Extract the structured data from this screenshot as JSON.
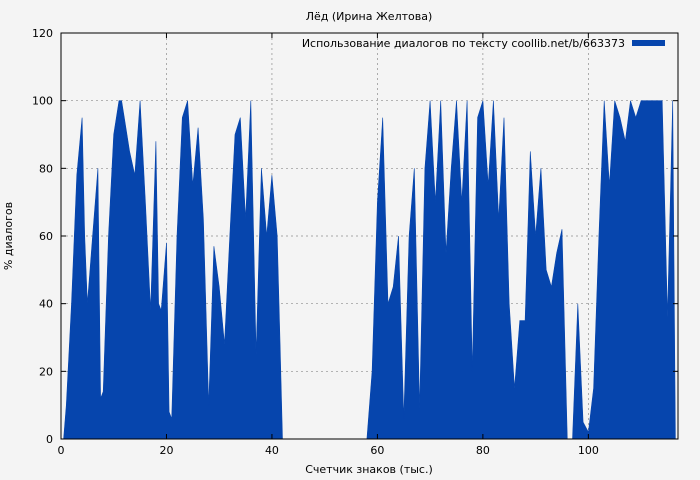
{
  "chart_data": {
    "type": "area",
    "title": "Лёд (Ирина Желтова)",
    "xlabel": "Счетчик знаков (тыс.)",
    "ylabel": "% диалогов",
    "xlim": [
      0,
      117
    ],
    "ylim": [
      0,
      120
    ],
    "x_ticks": [
      0,
      20,
      40,
      60,
      80,
      100
    ],
    "y_ticks": [
      0,
      20,
      40,
      60,
      80,
      100,
      120
    ],
    "grid": true,
    "legend_position": "top-right",
    "series": [
      {
        "name": "Использование диалогов по тексту coollib.net/b/663373",
        "color": "#0645ad",
        "points": [
          [
            0.5,
            0
          ],
          [
            1,
            10
          ],
          [
            2,
            40
          ],
          [
            3,
            78
          ],
          [
            4,
            95
          ],
          [
            4.5,
            60
          ],
          [
            5,
            40
          ],
          [
            6,
            60
          ],
          [
            7,
            80
          ],
          [
            7.5,
            12
          ],
          [
            8,
            14
          ],
          [
            9,
            60
          ],
          [
            10,
            90
          ],
          [
            11,
            100
          ],
          [
            11.5,
            100
          ],
          [
            12,
            95
          ],
          [
            13,
            85
          ],
          [
            14,
            78
          ],
          [
            15,
            100
          ],
          [
            16,
            70
          ],
          [
            17,
            38
          ],
          [
            18,
            88
          ],
          [
            18.5,
            40
          ],
          [
            19,
            38
          ],
          [
            20,
            58
          ],
          [
            20.5,
            8
          ],
          [
            21,
            6
          ],
          [
            22,
            60
          ],
          [
            23,
            95
          ],
          [
            24,
            100
          ],
          [
            25,
            75
          ],
          [
            26,
            92
          ],
          [
            27,
            65
          ],
          [
            28,
            10
          ],
          [
            29,
            57
          ],
          [
            30,
            45
          ],
          [
            31,
            28
          ],
          [
            32,
            60
          ],
          [
            33,
            90
          ],
          [
            34,
            95
          ],
          [
            35,
            65
          ],
          [
            36,
            100
          ],
          [
            37,
            25
          ],
          [
            38,
            80
          ],
          [
            39,
            60
          ],
          [
            40,
            78
          ],
          [
            41,
            60
          ],
          [
            41.5,
            30
          ],
          [
            42,
            0
          ],
          [
            58,
            0
          ],
          [
            59,
            20
          ],
          [
            60,
            70
          ],
          [
            61,
            95
          ],
          [
            62,
            40
          ],
          [
            63,
            45
          ],
          [
            64,
            60
          ],
          [
            65,
            6
          ],
          [
            66,
            60
          ],
          [
            67,
            80
          ],
          [
            68,
            9
          ],
          [
            69,
            80
          ],
          [
            70,
            100
          ],
          [
            71,
            70
          ],
          [
            72,
            100
          ],
          [
            73,
            55
          ],
          [
            74,
            80
          ],
          [
            75,
            100
          ],
          [
            76,
            70
          ],
          [
            77,
            100
          ],
          [
            78,
            20
          ],
          [
            79,
            95
          ],
          [
            80,
            100
          ],
          [
            81,
            75
          ],
          [
            82,
            100
          ],
          [
            83,
            65
          ],
          [
            84,
            95
          ],
          [
            85,
            40
          ],
          [
            86,
            15
          ],
          [
            87,
            35
          ],
          [
            88,
            35
          ],
          [
            89,
            85
          ],
          [
            90,
            60
          ],
          [
            91,
            80
          ],
          [
            92,
            50
          ],
          [
            93,
            45
          ],
          [
            94,
            55
          ],
          [
            95,
            62
          ],
          [
            96,
            0
          ],
          [
            97,
            0
          ],
          [
            98,
            40
          ],
          [
            99,
            5
          ],
          [
            100,
            2
          ],
          [
            101,
            15
          ],
          [
            102,
            60
          ],
          [
            103,
            100
          ],
          [
            104,
            75
          ],
          [
            105,
            100
          ],
          [
            106,
            95
          ],
          [
            107,
            88
          ],
          [
            108,
            100
          ],
          [
            109,
            95
          ],
          [
            110,
            100
          ],
          [
            112,
            100
          ],
          [
            114,
            100
          ],
          [
            115,
            36
          ],
          [
            116,
            100
          ],
          [
            116.5,
            0
          ]
        ]
      }
    ]
  }
}
